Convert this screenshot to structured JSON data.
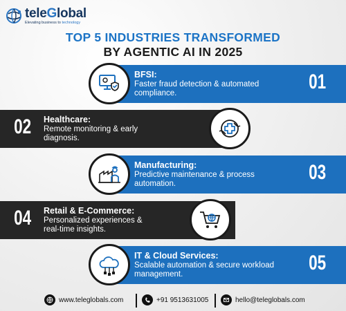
{
  "brand": {
    "name_a": "tele",
    "name_b": "G",
    "name_c": "lobal",
    "tagline_a": "Elevating business to ",
    "tagline_b": "technology"
  },
  "title": {
    "line1": "TOP 5 INDUSTRIES TRANSFORMED",
    "line2": "BY AGENTIC AI IN 2025"
  },
  "industries": [
    {
      "num": "01",
      "name": "BFSI:",
      "desc1": "Faster fraud detection & automated",
      "desc2": "compliance.",
      "icon": "monitor-shield-icon"
    },
    {
      "num": "02",
      "name": "Healthcare:",
      "desc1": "Remote monitoring & early",
      "desc2": "diagnosis.",
      "icon": "hands-medical-cross-icon"
    },
    {
      "num": "03",
      "name": "Manufacturing:",
      "desc1": "Predictive maintenance & process",
      "desc2": "automation.",
      "icon": "factory-worker-icon"
    },
    {
      "num": "04",
      "name": "Retail & E-Commerce:",
      "desc1": "Personalized experiences &",
      "desc2": "real-time insights.",
      "icon": "shopping-cart-globe-icon"
    },
    {
      "num": "05",
      "name": "IT & Cloud Services:",
      "desc1": "Scalable automation & secure workload",
      "desc2": "management.",
      "icon": "cloud-network-icon"
    }
  ],
  "footer": {
    "web": "www.teleglobals.com",
    "phone": "+91 9513631005",
    "email": "hello@teleglobals.com"
  },
  "colors": {
    "blue": "#1d70be",
    "dark": "#262626",
    "navy": "#16365f"
  }
}
